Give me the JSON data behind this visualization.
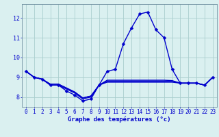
{
  "xlabel": "Graphe des températures (°c)",
  "hours": [
    0,
    1,
    2,
    3,
    4,
    5,
    6,
    7,
    8,
    9,
    10,
    11,
    12,
    13,
    14,
    15,
    16,
    17,
    18,
    19,
    20,
    21,
    22,
    23
  ],
  "temp_main": [
    9.3,
    9.0,
    8.9,
    8.6,
    8.6,
    8.3,
    8.1,
    7.8,
    7.9,
    8.6,
    9.3,
    9.4,
    10.7,
    11.5,
    12.2,
    12.3,
    11.4,
    11.0,
    9.4,
    8.7,
    8.7,
    8.7,
    8.6,
    9.0
  ],
  "temp_low": [
    9.3,
    9.0,
    8.9,
    8.6,
    8.6,
    8.4,
    8.2,
    7.9,
    8.0,
    8.6,
    8.75,
    8.75,
    8.75,
    8.75,
    8.75,
    8.75,
    8.75,
    8.75,
    8.75,
    8.7,
    8.7,
    8.7,
    8.6,
    9.0
  ],
  "temp_mid1": [
    9.3,
    9.0,
    8.9,
    8.65,
    8.65,
    8.45,
    8.25,
    7.95,
    8.05,
    8.6,
    8.8,
    8.8,
    8.8,
    8.8,
    8.8,
    8.8,
    8.8,
    8.8,
    8.8,
    8.7,
    8.7,
    8.7,
    8.6,
    9.0
  ],
  "temp_mid2": [
    9.3,
    9.0,
    8.9,
    8.65,
    8.65,
    8.45,
    8.25,
    7.95,
    8.05,
    8.6,
    8.85,
    8.85,
    8.85,
    8.85,
    8.85,
    8.85,
    8.85,
    8.85,
    8.83,
    8.7,
    8.7,
    8.7,
    8.6,
    9.0
  ],
  "ylim": [
    7.5,
    12.7
  ],
  "yticks": [
    8,
    9,
    10,
    11,
    12
  ],
  "line_color": "#0000cc",
  "bg_color": "#daf0f0",
  "grid_color": "#aacece",
  "markersize": 2.5,
  "linewidth": 1.0,
  "xlabel_fontsize": 6.5,
  "tick_fontsize": 5.5
}
